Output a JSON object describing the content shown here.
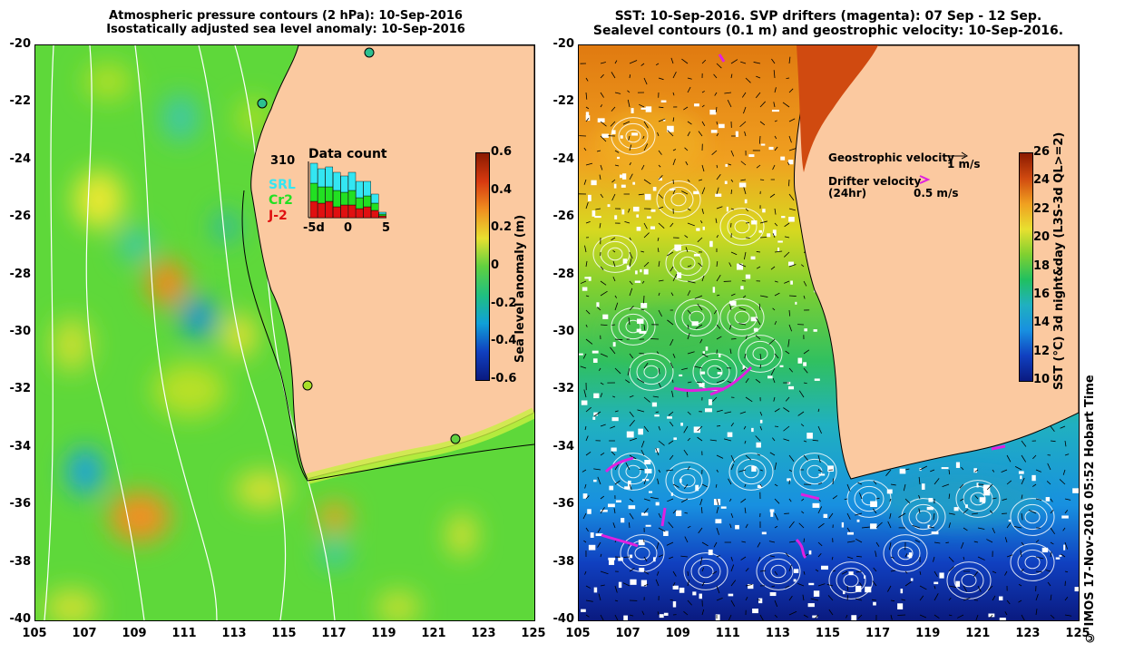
{
  "left_panel": {
    "title_line1": "Atmospheric pressure contours (2 hPa): 10-Sep-2016",
    "title_line2": "Isostatically adjusted sea level anomaly: 10-Sep-2016",
    "x_ticks": [
      "105",
      "107",
      "109",
      "111",
      "113",
      "115",
      "117",
      "119",
      "121",
      "123",
      "125"
    ],
    "y_ticks": [
      "-20",
      "-22",
      "-24",
      "-26",
      "-28",
      "-30",
      "-32",
      "-34",
      "-36",
      "-38",
      "-40"
    ],
    "inset": {
      "title": "Data count",
      "count": "310",
      "legend": [
        "SRL",
        "Cr2",
        "J-2"
      ],
      "legend_colors": [
        "#33e6f2",
        "#22e022",
        "#e01010"
      ],
      "x_ticks": [
        "-5d",
        "0",
        "5"
      ]
    },
    "colorbar": {
      "label": "Sea level anomaly (m)",
      "ticks": [
        "0.6",
        "0.4",
        "0.2",
        "0",
        "-0.2",
        "-0.4",
        "-0.6"
      ]
    }
  },
  "right_panel": {
    "title_line1": "SST: 10-Sep-2016. SVP drifters (magenta): 07 Sep - 12 Sep.",
    "title_line2": "Sealevel contours (0.1 m) and geostrophic velocity: 10-Sep-2016.",
    "x_ticks": [
      "105",
      "107",
      "109",
      "111",
      "113",
      "115",
      "117",
      "119",
      "121",
      "123",
      "125"
    ],
    "y_ticks": [
      "-20",
      "-22",
      "-24",
      "-26",
      "-28",
      "-30",
      "-32",
      "-34",
      "-36",
      "-38",
      "-40"
    ],
    "legend": {
      "geo_label": "Geostrophic velocity",
      "geo_scale": "1 m/s",
      "drifter_label": "Drifter velocity",
      "drifter_sub": "(24hr)",
      "drifter_scale": "0.5 m/s"
    },
    "colorbar": {
      "label": "SST (°C) 3d night&day (L3S-3d QL>=2)",
      "ticks": [
        "26",
        "24",
        "22",
        "20",
        "18",
        "16",
        "14",
        "12",
        "10"
      ]
    }
  },
  "credit": "© IMOS 17-Nov-2016 05:52 Hobart Time",
  "colors": {
    "land": "#fbc9a0",
    "sla_mid": "#22c02c",
    "drifter": "#e020e0"
  }
}
